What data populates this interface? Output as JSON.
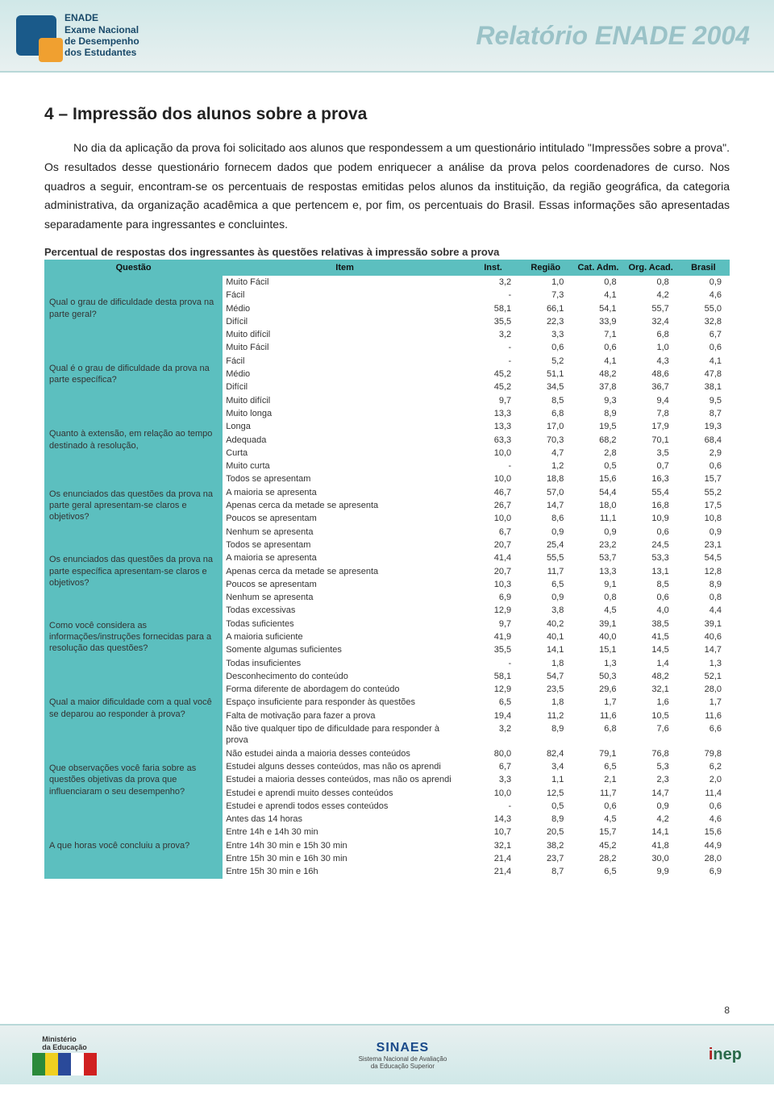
{
  "header": {
    "logo_text": "ENADE\nExame Nacional\nde Desempenho\ndos Estudantes",
    "banner_title": "Relatório ENADE 2004"
  },
  "section": {
    "title": "4 – Impressão dos alunos sobre a prova",
    "paragraph": "No dia da aplicação da prova foi solicitado aos alunos que respondessem a um questionário intitulado \"Impressões sobre a prova\". Os resultados desse questionário fornecem dados que podem enriquecer a análise da prova pelos coordenadores de curso. Nos quadros a seguir, encontram-se os percentuais de respostas emitidas pelos alunos da instituição, da região geográfica, da categoria administrativa, da organização acadêmica a que pertencem e, por fim, os percentuais do Brasil. Essas informações são apresentadas separadamente para ingressantes e concluintes."
  },
  "table": {
    "caption": "Percentual de respostas dos ingressantes às questões relativas à impressão sobre a prova",
    "columns": [
      "Questão",
      "Item",
      "Inst.",
      "Região",
      "Cat. Adm.",
      "Org. Acad.",
      "Brasil"
    ],
    "groups": [
      {
        "question": "Qual o grau de dificuldade desta prova na parte geral?",
        "rows": [
          [
            "Muito Fácil",
            "3,2",
            "1,0",
            "0,8",
            "0,8",
            "0,9"
          ],
          [
            "Fácil",
            "-",
            "7,3",
            "4,1",
            "4,2",
            "4,6"
          ],
          [
            "Médio",
            "58,1",
            "66,1",
            "54,1",
            "55,7",
            "55,0"
          ],
          [
            "Difícil",
            "35,5",
            "22,3",
            "33,9",
            "32,4",
            "32,8"
          ],
          [
            "Muito difícil",
            "3,2",
            "3,3",
            "7,1",
            "6,8",
            "6,7"
          ]
        ]
      },
      {
        "question": "Qual é o grau de dificuldade da prova na parte específica?",
        "rows": [
          [
            "Muito Fácil",
            "-",
            "0,6",
            "0,6",
            "1,0",
            "0,6"
          ],
          [
            "Fácil",
            "-",
            "5,2",
            "4,1",
            "4,3",
            "4,1"
          ],
          [
            "Médio",
            "45,2",
            "51,1",
            "48,2",
            "48,6",
            "47,8"
          ],
          [
            "Difícil",
            "45,2",
            "34,5",
            "37,8",
            "36,7",
            "38,1"
          ],
          [
            "Muito difícil",
            "9,7",
            "8,5",
            "9,3",
            "9,4",
            "9,5"
          ]
        ]
      },
      {
        "question": "Quanto à extensão, em relação ao tempo destinado à resolução,",
        "rows": [
          [
            "Muito longa",
            "13,3",
            "6,8",
            "8,9",
            "7,8",
            "8,7"
          ],
          [
            "Longa",
            "13,3",
            "17,0",
            "19,5",
            "17,9",
            "19,3"
          ],
          [
            "Adequada",
            "63,3",
            "70,3",
            "68,2",
            "70,1",
            "68,4"
          ],
          [
            "Curta",
            "10,0",
            "4,7",
            "2,8",
            "3,5",
            "2,9"
          ],
          [
            "Muito curta",
            "-",
            "1,2",
            "0,5",
            "0,7",
            "0,6"
          ]
        ]
      },
      {
        "question": "Os enunciados das questões da prova na parte geral apresentam-se claros e objetivos?",
        "rows": [
          [
            "Todos se apresentam",
            "10,0",
            "18,8",
            "15,6",
            "16,3",
            "15,7"
          ],
          [
            "A maioria se apresenta",
            "46,7",
            "57,0",
            "54,4",
            "55,4",
            "55,2"
          ],
          [
            "Apenas cerca da metade se apresenta",
            "26,7",
            "14,7",
            "18,0",
            "16,8",
            "17,5"
          ],
          [
            "Poucos se apresentam",
            "10,0",
            "8,6",
            "11,1",
            "10,9",
            "10,8"
          ],
          [
            "Nenhum se apresenta",
            "6,7",
            "0,9",
            "0,9",
            "0,6",
            "0,9"
          ]
        ]
      },
      {
        "question": "Os enunciados das questões da prova na parte específica apresentam-se claros e objetivos?",
        "rows": [
          [
            "Todos se apresentam",
            "20,7",
            "25,4",
            "23,2",
            "24,5",
            "23,1"
          ],
          [
            "A maioria se apresenta",
            "41,4",
            "55,5",
            "53,7",
            "53,3",
            "54,5"
          ],
          [
            "Apenas cerca da metade se apresenta",
            "20,7",
            "11,7",
            "13,3",
            "13,1",
            "12,8"
          ],
          [
            "Poucos se apresentam",
            "10,3",
            "6,5",
            "9,1",
            "8,5",
            "8,9"
          ],
          [
            "Nenhum se apresenta",
            "6,9",
            "0,9",
            "0,8",
            "0,6",
            "0,8"
          ]
        ]
      },
      {
        "question": "Como você considera as informações/instruções fornecidas para a resolução das questões?",
        "rows": [
          [
            "Todas excessivas",
            "12,9",
            "3,8",
            "4,5",
            "4,0",
            "4,4"
          ],
          [
            "Todas suficientes",
            "9,7",
            "40,2",
            "39,1",
            "38,5",
            "39,1"
          ],
          [
            "A maioria suficiente",
            "41,9",
            "40,1",
            "40,0",
            "41,5",
            "40,6"
          ],
          [
            "Somente algumas suficientes",
            "35,5",
            "14,1",
            "15,1",
            "14,5",
            "14,7"
          ],
          [
            "Todas insuficientes",
            "-",
            "1,8",
            "1,3",
            "1,4",
            "1,3"
          ]
        ]
      },
      {
        "question": "Qual a maior dificuldade com a qual você se deparou ao responder à prova?",
        "rows": [
          [
            "Desconhecimento do conteúdo",
            "58,1",
            "54,7",
            "50,3",
            "48,2",
            "52,1"
          ],
          [
            "Forma diferente de abordagem do conteúdo",
            "12,9",
            "23,5",
            "29,6",
            "32,1",
            "28,0"
          ],
          [
            "Espaço insuficiente para responder às questões",
            "6,5",
            "1,8",
            "1,7",
            "1,6",
            "1,7"
          ],
          [
            "Falta de motivação para fazer a prova",
            "19,4",
            "11,2",
            "11,6",
            "10,5",
            "11,6"
          ],
          [
            "Não tive qualquer tipo de dificuldade para responder à prova",
            "3,2",
            "8,9",
            "6,8",
            "7,6",
            "6,6"
          ]
        ]
      },
      {
        "question": "Que observações você faria sobre as questões objetivas da prova que influenciaram o seu desempenho?",
        "rows": [
          [
            "Não estudei ainda a maioria desses conteúdos",
            "80,0",
            "82,4",
            "79,1",
            "76,8",
            "79,8"
          ],
          [
            "Estudei alguns desses conteúdos, mas não os aprendi",
            "6,7",
            "3,4",
            "6,5",
            "5,3",
            "6,2"
          ],
          [
            "Estudei a maioria desses conteúdos, mas não os aprendi",
            "3,3",
            "1,1",
            "2,1",
            "2,3",
            "2,0"
          ],
          [
            "Estudei e aprendi muito desses conteúdos",
            "10,0",
            "12,5",
            "11,7",
            "14,7",
            "11,4"
          ],
          [
            "Estudei e aprendi todos esses conteúdos",
            "-",
            "0,5",
            "0,6",
            "0,9",
            "0,6"
          ]
        ]
      },
      {
        "question": "A que horas você concluiu a prova?",
        "rows": [
          [
            "Antes das 14 horas",
            "14,3",
            "8,9",
            "4,5",
            "4,2",
            "4,6"
          ],
          [
            "Entre 14h e 14h 30 min",
            "10,7",
            "20,5",
            "15,7",
            "14,1",
            "15,6"
          ],
          [
            "Entre 14h 30 min e 15h 30 min",
            "32,1",
            "38,2",
            "45,2",
            "41,8",
            "44,9"
          ],
          [
            "Entre 15h 30 min e 16h 30 min",
            "21,4",
            "23,7",
            "28,2",
            "30,0",
            "28,0"
          ],
          [
            "Entre 15h 30 min e 16h",
            "21,4",
            "8,7",
            "6,5",
            "9,9",
            "6,9"
          ]
        ]
      }
    ]
  },
  "page_number": "8",
  "footer": {
    "ministerio": "Ministério\nda Educação",
    "sinaes_title": "SINAES",
    "sinaes_sub": "Sistema Nacional de Avaliação\nda Educação Superior",
    "inep": "inep"
  },
  "colors": {
    "header_bg": "#d0e8e8",
    "th_bg": "#5cbfbf",
    "text": "#222222"
  }
}
